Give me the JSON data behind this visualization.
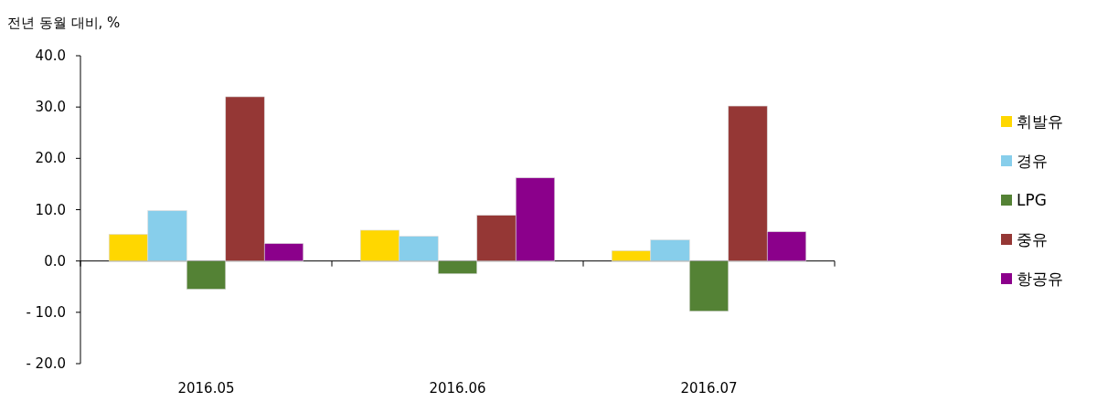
{
  "chart_data": {
    "type": "bar",
    "ylabel": "전년 동월 대비, %",
    "categories": [
      "2016.05",
      "2016.06",
      "2016.07"
    ],
    "series": [
      {
        "name": "휘발유",
        "color": "#ffd700",
        "values": [
          5.2,
          6.0,
          2.0
        ]
      },
      {
        "name": "경유",
        "color": "#87ceeb",
        "values": [
          9.8,
          4.8,
          4.1
        ]
      },
      {
        "name": "LPG",
        "color": "#548235",
        "values": [
          -5.5,
          -2.5,
          -9.8
        ]
      },
      {
        "name": "중유",
        "color": "#953735",
        "values": [
          32.0,
          8.9,
          30.2
        ]
      },
      {
        "name": "항공유",
        "color": "#8b008b",
        "values": [
          3.4,
          16.2,
          5.7
        ]
      }
    ],
    "ylim": [
      -20,
      40
    ],
    "yticks": [
      {
        "value": 40,
        "label": "40.0"
      },
      {
        "value": 30,
        "label": "30.0"
      },
      {
        "value": 20,
        "label": "20.0"
      },
      {
        "value": 10,
        "label": "10.0"
      },
      {
        "value": 0,
        "label": "0.0"
      },
      {
        "value": -10,
        "label": "- 10.0"
      },
      {
        "value": -20,
        "label": "- 20.0"
      }
    ],
    "legend": "right"
  }
}
